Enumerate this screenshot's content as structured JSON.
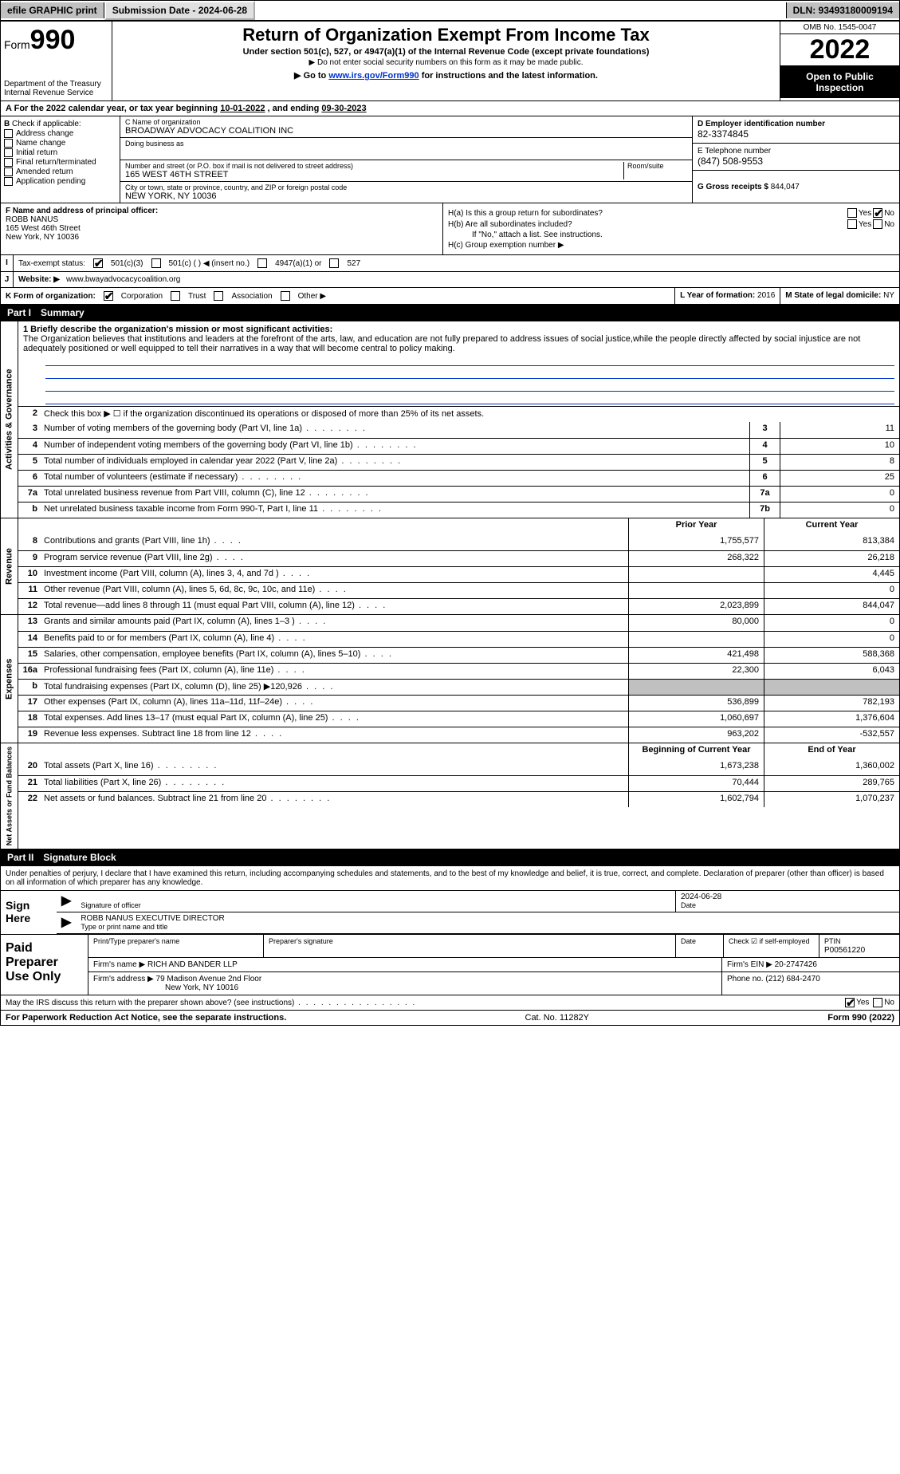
{
  "top": {
    "efile": "efile GRAPHIC print",
    "submission_label": "Submission Date - 2024-06-28",
    "dln": "DLN: 93493180009194"
  },
  "header": {
    "form_label": "Form",
    "form_num": "990",
    "dept": "Department of the Treasury",
    "irs": "Internal Revenue Service",
    "title": "Return of Organization Exempt From Income Tax",
    "subtitle": "Under section 501(c), 527, or 4947(a)(1) of the Internal Revenue Code (except private foundations)",
    "ssn_note": "▶ Do not enter social security numbers on this form as it may be made public.",
    "link_pre": "▶ Go to ",
    "link_url": "www.irs.gov/Form990",
    "link_post": " for instructions and the latest information.",
    "omb": "OMB No. 1545-0047",
    "year": "2022",
    "open": "Open to Public Inspection"
  },
  "period": {
    "text_pre": "For the 2022 calendar year, or tax year beginning ",
    "begin": "10-01-2022",
    "mid": " , and ending ",
    "end": "09-30-2023"
  },
  "box_b": {
    "label": "Check if applicable:",
    "items": [
      "Address change",
      "Name change",
      "Initial return",
      "Final return/terminated",
      "Amended return",
      "Application pending"
    ]
  },
  "box_c": {
    "name_label": "C Name of organization",
    "name": "BROADWAY ADVOCACY COALITION INC",
    "dba_label": "Doing business as",
    "dba": "",
    "addr_label": "Number and street (or P.O. box if mail is not delivered to street address)",
    "room_label": "Room/suite",
    "addr": "165 WEST 46TH STREET",
    "city_label": "City or town, state or province, country, and ZIP or foreign postal code",
    "city": "NEW YORK, NY  10036"
  },
  "box_d": {
    "ein_label": "D Employer identification number",
    "ein": "82-3374845",
    "phone_label": "E Telephone number",
    "phone": "(847) 508-9553",
    "gross_label": "G Gross receipts $",
    "gross": "844,047"
  },
  "box_f": {
    "label": "F  Name and address of principal officer:",
    "name": "ROBB NANUS",
    "addr1": "165 West 46th Street",
    "addr2": "New York, NY  10036"
  },
  "box_h": {
    "a": "H(a)  Is this a group return for subordinates?",
    "b": "H(b)  Are all subordinates included?",
    "b_note": "If \"No,\" attach a list. See instructions.",
    "c": "H(c)  Group exemption number ▶",
    "yes": "Yes",
    "no": "No"
  },
  "row_i": {
    "label": "Tax-exempt status:",
    "opts": [
      "501(c)(3)",
      "501(c) (  ) ◀ (insert no.)",
      "4947(a)(1) or",
      "527"
    ]
  },
  "row_j": {
    "label": "Website: ▶",
    "val": "www.bwayadvocacycoalition.org"
  },
  "row_k": {
    "label": "K Form of organization:",
    "opts": [
      "Corporation",
      "Trust",
      "Association",
      "Other ▶"
    ],
    "l_label": "L Year of formation:",
    "l_val": "2016",
    "m_label": "M State of legal domicile:",
    "m_val": "NY"
  },
  "part1": {
    "num": "Part I",
    "title": "Summary"
  },
  "summary": {
    "mission_label": "1  Briefly describe the organization's mission or most significant activities:",
    "mission": "The Organization believes that institutions and leaders at the forefront of the arts, law, and education are not fully prepared to address issues of social justice,while the people directly affected by social injustice are not adequately positioned or well equipped to tell their narratives in a way that will become central to policy making.",
    "line2": "Check this box ▶ ☐  if the organization discontinued its operations or disposed of more than 25% of its net assets.",
    "rows_gov": [
      {
        "n": "3",
        "d": "Number of voting members of the governing body (Part VI, line 1a)",
        "bn": "3",
        "v": "11"
      },
      {
        "n": "4",
        "d": "Number of independent voting members of the governing body (Part VI, line 1b)",
        "bn": "4",
        "v": "10"
      },
      {
        "n": "5",
        "d": "Total number of individuals employed in calendar year 2022 (Part V, line 2a)",
        "bn": "5",
        "v": "8"
      },
      {
        "n": "6",
        "d": "Total number of volunteers (estimate if necessary)",
        "bn": "6",
        "v": "25"
      },
      {
        "n": "7a",
        "d": "Total unrelated business revenue from Part VIII, column (C), line 12",
        "bn": "7a",
        "v": "0"
      },
      {
        "n": "b",
        "d": "Net unrelated business taxable income from Form 990-T, Part I, line 11",
        "bn": "7b",
        "v": "0"
      }
    ],
    "hdr_py": "Prior Year",
    "hdr_cy": "Current Year",
    "rows_rev": [
      {
        "n": "8",
        "d": "Contributions and grants (Part VIII, line 1h)",
        "py": "1,755,577",
        "cy": "813,384"
      },
      {
        "n": "9",
        "d": "Program service revenue (Part VIII, line 2g)",
        "py": "268,322",
        "cy": "26,218"
      },
      {
        "n": "10",
        "d": "Investment income (Part VIII, column (A), lines 3, 4, and 7d )",
        "py": "",
        "cy": "4,445"
      },
      {
        "n": "11",
        "d": "Other revenue (Part VIII, column (A), lines 5, 6d, 8c, 9c, 10c, and 11e)",
        "py": "",
        "cy": "0"
      },
      {
        "n": "12",
        "d": "Total revenue—add lines 8 through 11 (must equal Part VIII, column (A), line 12)",
        "py": "2,023,899",
        "cy": "844,047"
      }
    ],
    "rows_exp": [
      {
        "n": "13",
        "d": "Grants and similar amounts paid (Part IX, column (A), lines 1–3 )",
        "py": "80,000",
        "cy": "0"
      },
      {
        "n": "14",
        "d": "Benefits paid to or for members (Part IX, column (A), line 4)",
        "py": "",
        "cy": "0"
      },
      {
        "n": "15",
        "d": "Salaries, other compensation, employee benefits (Part IX, column (A), lines 5–10)",
        "py": "421,498",
        "cy": "588,368"
      },
      {
        "n": "16a",
        "d": "Professional fundraising fees (Part IX, column (A), line 11e)",
        "py": "22,300",
        "cy": "6,043"
      },
      {
        "n": "b",
        "d": "Total fundraising expenses (Part IX, column (D), line 25) ▶120,926",
        "py": "grey",
        "cy": "grey"
      },
      {
        "n": "17",
        "d": "Other expenses (Part IX, column (A), lines 11a–11d, 11f–24e)",
        "py": "536,899",
        "cy": "782,193"
      },
      {
        "n": "18",
        "d": "Total expenses. Add lines 13–17 (must equal Part IX, column (A), line 25)",
        "py": "1,060,697",
        "cy": "1,376,604"
      },
      {
        "n": "19",
        "d": "Revenue less expenses. Subtract line 18 from line 12",
        "py": "963,202",
        "cy": "-532,557"
      }
    ],
    "hdr_by": "Beginning of Current Year",
    "hdr_ey": "End of Year",
    "rows_net": [
      {
        "n": "20",
        "d": "Total assets (Part X, line 16)",
        "py": "1,673,238",
        "cy": "1,360,002"
      },
      {
        "n": "21",
        "d": "Total liabilities (Part X, line 26)",
        "py": "70,444",
        "cy": "289,765"
      },
      {
        "n": "22",
        "d": "Net assets or fund balances. Subtract line 21 from line 20",
        "py": "1,602,794",
        "cy": "1,070,237"
      }
    ],
    "tabs": {
      "gov": "Activities & Governance",
      "rev": "Revenue",
      "exp": "Expenses",
      "net": "Net Assets or Fund Balances"
    }
  },
  "part2": {
    "num": "Part II",
    "title": "Signature Block"
  },
  "sig": {
    "decl": "Under penalties of perjury, I declare that I have examined this return, including accompanying schedules and statements, and to the best of my knowledge and belief, it is true, correct, and complete. Declaration of preparer (other than officer) is based on all information of which preparer has any knowledge.",
    "sign_here": "Sign Here",
    "sig_officer": "Signature of officer",
    "date": "Date",
    "date_val": "2024-06-28",
    "name": "ROBB NANUS  EXECUTIVE DIRECTOR",
    "name_label": "Type or print name and title",
    "paid": "Paid Preparer Use Only",
    "p_name_label": "Print/Type preparer's name",
    "p_name": "",
    "p_sig_label": "Preparer's signature",
    "p_date": "Date",
    "p_check": "Check ☑ if self-employed",
    "ptin_label": "PTIN",
    "ptin": "P00561220",
    "firm_name_label": "Firm's name   ▶",
    "firm_name": "RICH AND BANDER LLP",
    "firm_ein_label": "Firm's EIN ▶",
    "firm_ein": "20-2747426",
    "firm_addr_label": "Firm's address ▶",
    "firm_addr1": "79 Madison Avenue 2nd Floor",
    "firm_addr2": "New York, NY  10016",
    "firm_phone_label": "Phone no.",
    "firm_phone": "(212) 684-2470",
    "discuss": "May the IRS discuss this return with the preparer shown above? (see instructions)"
  },
  "footer": {
    "left": "For Paperwork Reduction Act Notice, see the separate instructions.",
    "mid": "Cat. No. 11282Y",
    "right": "Form 990 (2022)"
  }
}
